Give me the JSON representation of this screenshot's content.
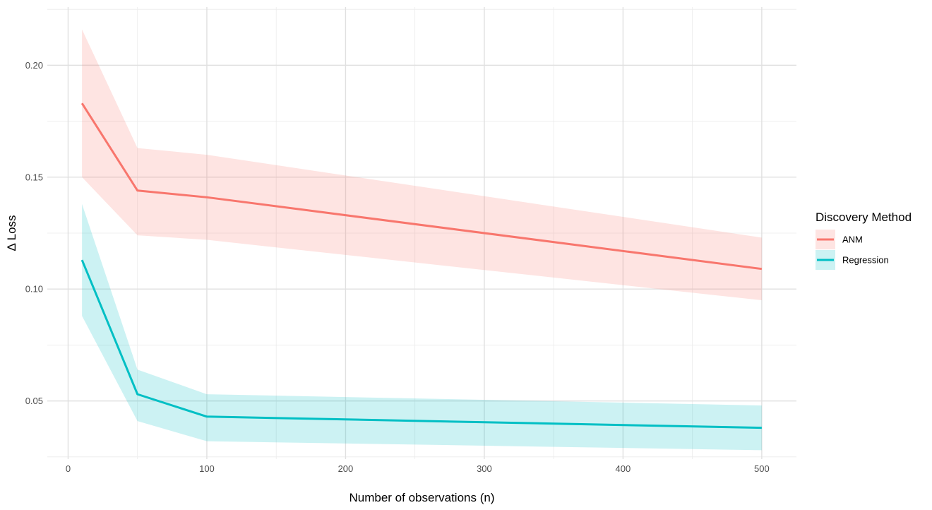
{
  "chart_data": {
    "type": "line",
    "xlabel": "Number of observations (n)",
    "ylabel": "Δ Loss",
    "xlim": [
      -15,
      525
    ],
    "ylim": [
      0.024,
      0.226
    ],
    "x_ticks": [
      0,
      100,
      200,
      300,
      400,
      500
    ],
    "y_ticks": [
      0.05,
      0.1,
      0.15,
      0.2
    ],
    "x_tick_labels": [
      "0",
      "100",
      "200",
      "300",
      "400",
      "500"
    ],
    "y_tick_labels": [
      "0.05",
      "0.10",
      "0.15",
      "0.20"
    ],
    "x_minor_ticks": [
      50,
      150,
      250,
      350,
      450
    ],
    "y_minor_ticks": [
      0.025,
      0.075,
      0.125,
      0.175,
      0.225
    ],
    "grid": true,
    "legend": {
      "title": "Discovery Method",
      "position": "right"
    },
    "series": [
      {
        "name": "ANM",
        "color": "#F8766D",
        "fill_color": "#F8766D",
        "x": [
          10,
          50,
          100,
          500
        ],
        "y": [
          0.183,
          0.144,
          0.141,
          0.109
        ],
        "lower": [
          0.15,
          0.124,
          0.122,
          0.095
        ],
        "upper": [
          0.216,
          0.163,
          0.16,
          0.123
        ]
      },
      {
        "name": "Regression",
        "color": "#00BFC4",
        "fill_color": "#00BFC4",
        "x": [
          10,
          50,
          100,
          500
        ],
        "y": [
          0.113,
          0.053,
          0.043,
          0.038
        ],
        "lower": [
          0.088,
          0.041,
          0.032,
          0.028
        ],
        "upper": [
          0.138,
          0.064,
          0.053,
          0.048
        ]
      }
    ]
  }
}
